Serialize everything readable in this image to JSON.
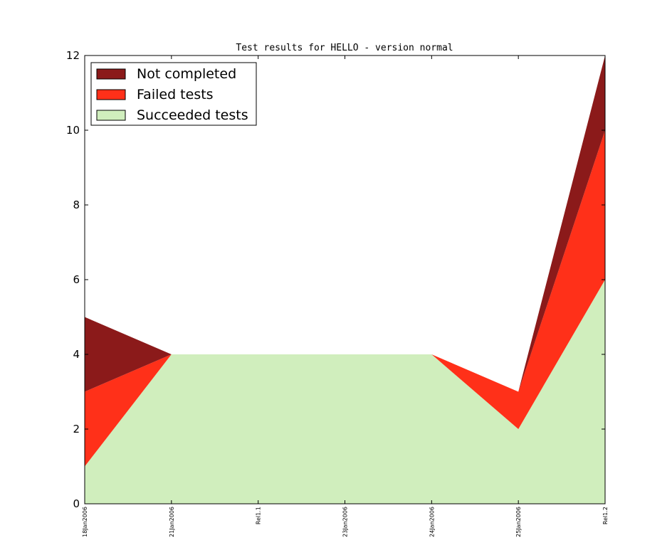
{
  "chart_data": {
    "type": "area",
    "stacked": true,
    "title": "Test results for HELLO - version normal",
    "xlabel": "",
    "ylabel": "",
    "categories": [
      "18Jan2006",
      "21Jan2006",
      "Rel1.1",
      "23Jan2006",
      "24Jan2006",
      "25Jan2006",
      "Rel1.2"
    ],
    "ylim": [
      0,
      12
    ],
    "yticks": [
      "0",
      "2",
      "4",
      "6",
      "8",
      "10",
      "12"
    ],
    "grid": false,
    "legend_position": "top-left",
    "series": [
      {
        "name": "Succeeded tests",
        "color": "#d0eebd",
        "values": [
          1,
          4,
          4,
          4,
          4,
          2,
          6
        ]
      },
      {
        "name": "Failed tests",
        "color": "#ff3019",
        "values": [
          2,
          0,
          0,
          0,
          0,
          1,
          4
        ]
      },
      {
        "name": "Not completed",
        "color": "#8b1a1a",
        "values": [
          2,
          0,
          0,
          0,
          0,
          0,
          2
        ]
      }
    ],
    "legend_order": [
      "Not completed",
      "Failed tests",
      "Succeeded tests"
    ]
  }
}
